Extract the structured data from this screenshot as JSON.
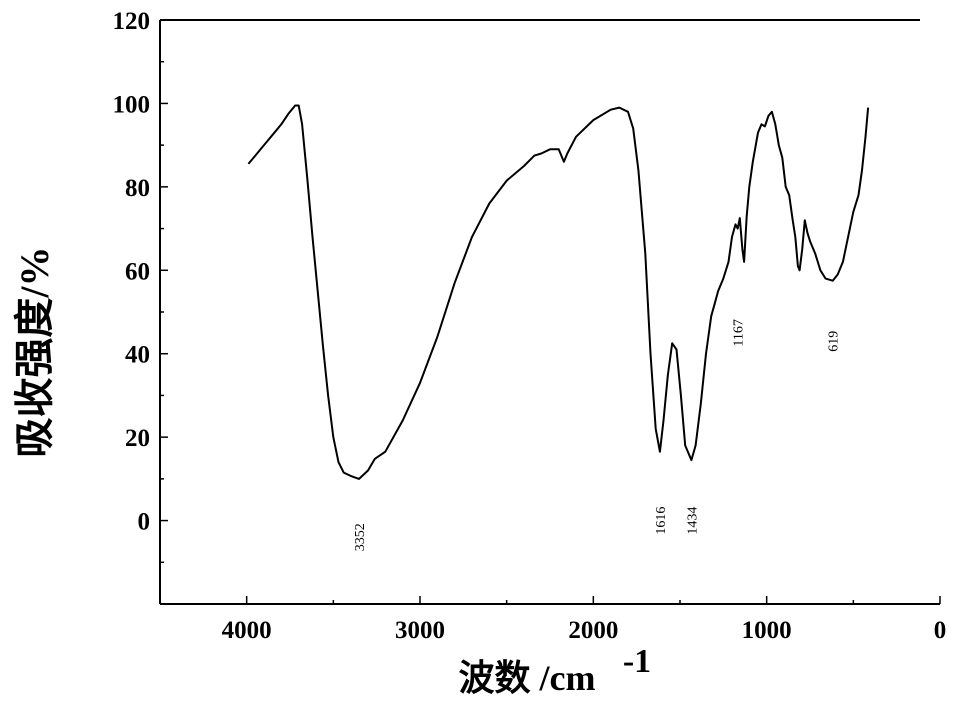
{
  "chart_data": {
    "type": "line",
    "title": "",
    "xlabel": "波数 /cm",
    "xlabel_superscript": "-1",
    "ylabel": "吸收强度/%",
    "xlim": [
      4500,
      0
    ],
    "ylim": [
      -20,
      120
    ],
    "x_reversed": true,
    "grid": false,
    "legend": "none",
    "xticks": [
      4000,
      3000,
      2000,
      1000,
      0
    ],
    "xtick_labels": [
      "4000",
      "3000",
      "2000",
      "1000",
      "0"
    ],
    "yticks": [
      0,
      20,
      40,
      60,
      80,
      100,
      120
    ],
    "ytick_labels": [
      "0",
      "20",
      "40",
      "60",
      "80",
      "100",
      "120"
    ],
    "series": [
      {
        "color": "#000000",
        "points": [
          [
            3990,
            85.5
          ],
          [
            3950,
            87.5
          ],
          [
            3900,
            90
          ],
          [
            3850,
            92.5
          ],
          [
            3800,
            95
          ],
          [
            3760,
            97.5
          ],
          [
            3720,
            99.5
          ],
          [
            3700,
            99.5
          ],
          [
            3680,
            95
          ],
          [
            3650,
            82
          ],
          [
            3620,
            68
          ],
          [
            3590,
            55
          ],
          [
            3560,
            42
          ],
          [
            3530,
            30
          ],
          [
            3500,
            20
          ],
          [
            3470,
            14
          ],
          [
            3440,
            11.5
          ],
          [
            3400,
            10.7
          ],
          [
            3352,
            10
          ],
          [
            3300,
            12
          ],
          [
            3260,
            14.8
          ],
          [
            3200,
            16.5
          ],
          [
            3100,
            24
          ],
          [
            3000,
            33
          ],
          [
            2900,
            44
          ],
          [
            2800,
            57
          ],
          [
            2700,
            68
          ],
          [
            2600,
            76
          ],
          [
            2500,
            81.5
          ],
          [
            2400,
            85
          ],
          [
            2340,
            87.5
          ],
          [
            2300,
            88
          ],
          [
            2250,
            89
          ],
          [
            2200,
            89
          ],
          [
            2170,
            86
          ],
          [
            2150,
            88
          ],
          [
            2100,
            92
          ],
          [
            2000,
            96
          ],
          [
            1900,
            98.5
          ],
          [
            1850,
            99
          ],
          [
            1800,
            98
          ],
          [
            1770,
            94
          ],
          [
            1740,
            84
          ],
          [
            1700,
            64
          ],
          [
            1670,
            40
          ],
          [
            1640,
            22
          ],
          [
            1616,
            16.5
          ],
          [
            1595,
            24
          ],
          [
            1570,
            35
          ],
          [
            1545,
            42.5
          ],
          [
            1520,
            41
          ],
          [
            1495,
            30
          ],
          [
            1470,
            18
          ],
          [
            1434,
            14.5
          ],
          [
            1410,
            18
          ],
          [
            1380,
            28
          ],
          [
            1350,
            40
          ],
          [
            1320,
            49
          ],
          [
            1300,
            52
          ],
          [
            1280,
            55
          ],
          [
            1250,
            58
          ],
          [
            1220,
            62
          ],
          [
            1200,
            68
          ],
          [
            1180,
            71
          ],
          [
            1167,
            70
          ],
          [
            1155,
            72.5
          ],
          [
            1140,
            65
          ],
          [
            1130,
            62
          ],
          [
            1115,
            73
          ],
          [
            1100,
            80
          ],
          [
            1080,
            86
          ],
          [
            1050,
            93
          ],
          [
            1030,
            95
          ],
          [
            1010,
            94.5
          ],
          [
            990,
            97
          ],
          [
            970,
            98
          ],
          [
            950,
            95
          ],
          [
            930,
            90
          ],
          [
            910,
            87
          ],
          [
            890,
            80
          ],
          [
            870,
            78
          ],
          [
            850,
            72
          ],
          [
            835,
            68
          ],
          [
            820,
            61
          ],
          [
            810,
            60
          ],
          [
            795,
            65
          ],
          [
            780,
            72
          ],
          [
            765,
            69
          ],
          [
            750,
            67
          ],
          [
            720,
            64
          ],
          [
            690,
            60
          ],
          [
            660,
            58
          ],
          [
            619,
            57.5
          ],
          [
            590,
            59
          ],
          [
            560,
            62
          ],
          [
            530,
            68
          ],
          [
            500,
            74
          ],
          [
            470,
            78
          ],
          [
            450,
            84
          ],
          [
            430,
            92
          ],
          [
            415,
            99
          ]
        ]
      }
    ],
    "annotations": [
      {
        "text": "3352",
        "x": 3352,
        "y": -4
      },
      {
        "text": "1616",
        "x": 1616,
        "y": 0
      },
      {
        "text": "1434",
        "x": 1434,
        "y": 0
      },
      {
        "text": "1167",
        "x": 1167,
        "y": 45
      },
      {
        "text": "619",
        "x": 619,
        "y": 43
      }
    ]
  }
}
